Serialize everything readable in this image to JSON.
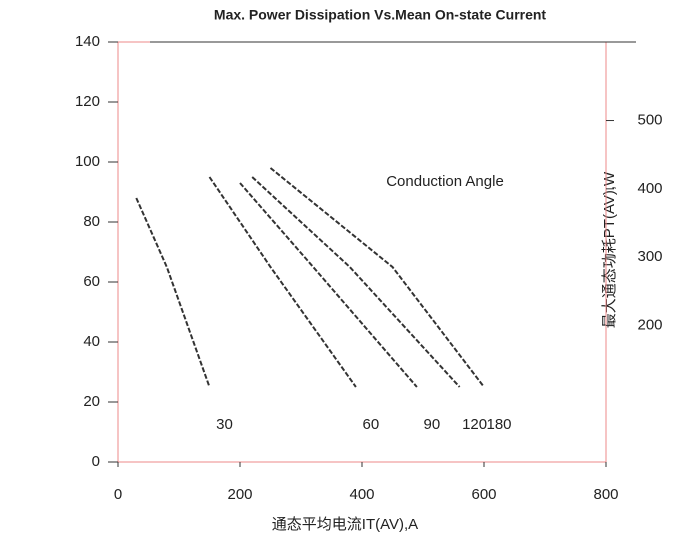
{
  "chart_data": {
    "type": "line",
    "title": "Max. Power Dissipation Vs.Mean On-state Current",
    "xlabel": "通态平均电流IT(AV),A",
    "y2label": "最大通态功耗PT(AV),W",
    "annotation": "Conduction Angle",
    "xlim": [
      0,
      800
    ],
    "xticks": [
      0,
      200,
      400,
      600,
      800
    ],
    "ylim": [
      0,
      140
    ],
    "yticks": [
      0,
      20,
      40,
      60,
      80,
      100,
      120,
      140
    ],
    "y2lim": [
      0,
      615
    ],
    "y2ticks": [
      200,
      300,
      400,
      500
    ],
    "series": [
      {
        "name": "30",
        "color": "#333333",
        "x": [
          30,
          80,
          150
        ],
        "values": [
          88,
          65,
          25
        ]
      },
      {
        "name": "60",
        "color": "#333333",
        "x": [
          150,
          250,
          390
        ],
        "values": [
          95,
          65,
          25
        ]
      },
      {
        "name": "90",
        "color": "#333333",
        "x": [
          200,
          320,
          490
        ],
        "values": [
          93,
          65,
          25
        ]
      },
      {
        "name": "120",
        "color": "#333333",
        "x": [
          220,
          380,
          560
        ],
        "values": [
          95,
          65,
          25
        ]
      },
      {
        "name": "180",
        "color": "#333333",
        "x": [
          250,
          450,
          600
        ],
        "values": [
          98,
          65,
          25
        ]
      }
    ]
  }
}
